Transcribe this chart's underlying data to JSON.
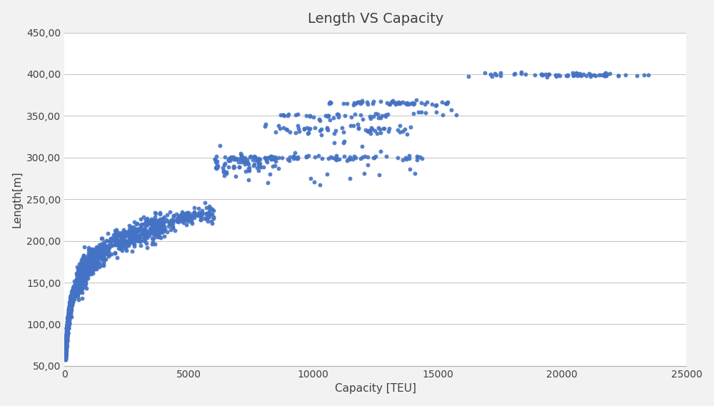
{
  "title": "Length VS Capacity",
  "xlabel": "Capacity [TEU]",
  "ylabel": "Length[m]",
  "xlim": [
    0,
    25000
  ],
  "ylim": [
    50,
    450
  ],
  "xticks": [
    0,
    5000,
    10000,
    15000,
    20000,
    25000
  ],
  "yticks": [
    50,
    100,
    150,
    200,
    250,
    300,
    350,
    400,
    450
  ],
  "ytick_labels": [
    "50,00",
    "100,00",
    "150,00",
    "200,00",
    "250,00",
    "300,00",
    "350,00",
    "400,00",
    "450,00"
  ],
  "xtick_labels": [
    "0",
    "5000",
    "10000",
    "15000",
    "20000",
    "25000"
  ],
  "dot_color": "#4472C4",
  "dot_size": 18,
  "background_color": "#f2f2f2",
  "plot_bg_color": "#ffffff",
  "grid_color": "#c8c8c8",
  "title_fontsize": 14,
  "label_fontsize": 11
}
